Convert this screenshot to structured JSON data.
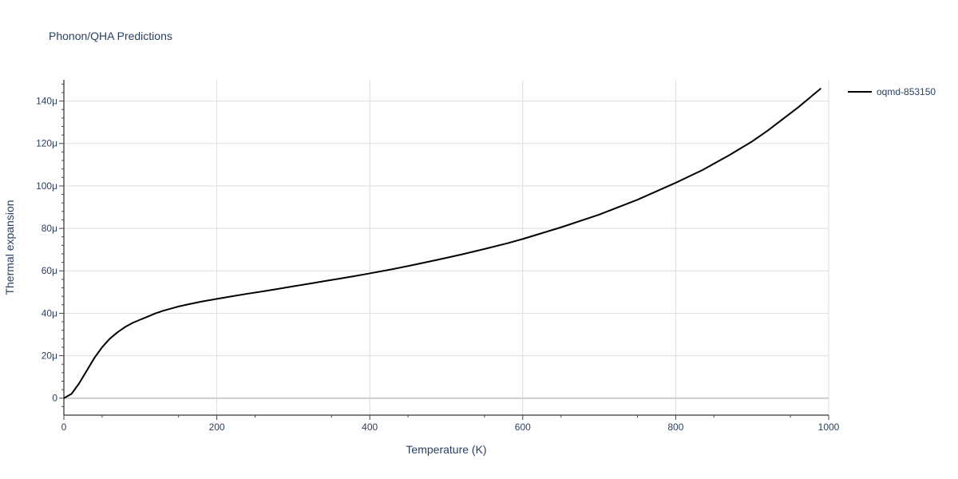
{
  "chart_data": {
    "type": "line",
    "title": "Phonon/QHA Predictions",
    "xlabel": "Temperature (K)",
    "ylabel": "Thermal expansion",
    "xlim": [
      0,
      1000
    ],
    "ylim": [
      -8,
      150
    ],
    "x_ticks": [
      0,
      200,
      400,
      600,
      800,
      1000
    ],
    "x_tick_labels": [
      "0",
      "200",
      "400",
      "600",
      "800",
      "1000"
    ],
    "y_ticks": [
      0,
      20,
      40,
      60,
      80,
      100,
      120,
      140
    ],
    "y_tick_labels": [
      "0",
      "20μ",
      "40μ",
      "60μ",
      "80μ",
      "100μ",
      "120μ",
      "140μ"
    ],
    "y_unit_note": "μ = 1e-6",
    "grid": true,
    "legend_position": "top-right",
    "series": [
      {
        "name": "oqmd-853150",
        "color": "#000000",
        "x": [
          0,
          10,
          20,
          30,
          40,
          50,
          60,
          70,
          80,
          90,
          100,
          110,
          120,
          130,
          140,
          150,
          160,
          180,
          200,
          220,
          240,
          260,
          280,
          300,
          320,
          340,
          360,
          380,
          400,
          430,
          460,
          490,
          520,
          550,
          580,
          600,
          650,
          700,
          750,
          800,
          835,
          870,
          900,
          920,
          940,
          960,
          975,
          990
        ],
        "y": [
          0,
          2,
          7,
          13,
          19,
          24,
          28,
          31,
          33.5,
          35.5,
          37,
          38.5,
          40,
          41.2,
          42.2,
          43.2,
          44,
          45.5,
          46.8,
          48,
          49.2,
          50.3,
          51.5,
          52.7,
          53.9,
          55.1,
          56.3,
          57.5,
          58.8,
          60.8,
          63,
          65.3,
          67.7,
          70.3,
          73,
          75,
          80.5,
          86.5,
          93.5,
          101.5,
          107.5,
          114.5,
          121,
          126,
          131.5,
          137,
          141.5,
          146
        ]
      }
    ]
  }
}
